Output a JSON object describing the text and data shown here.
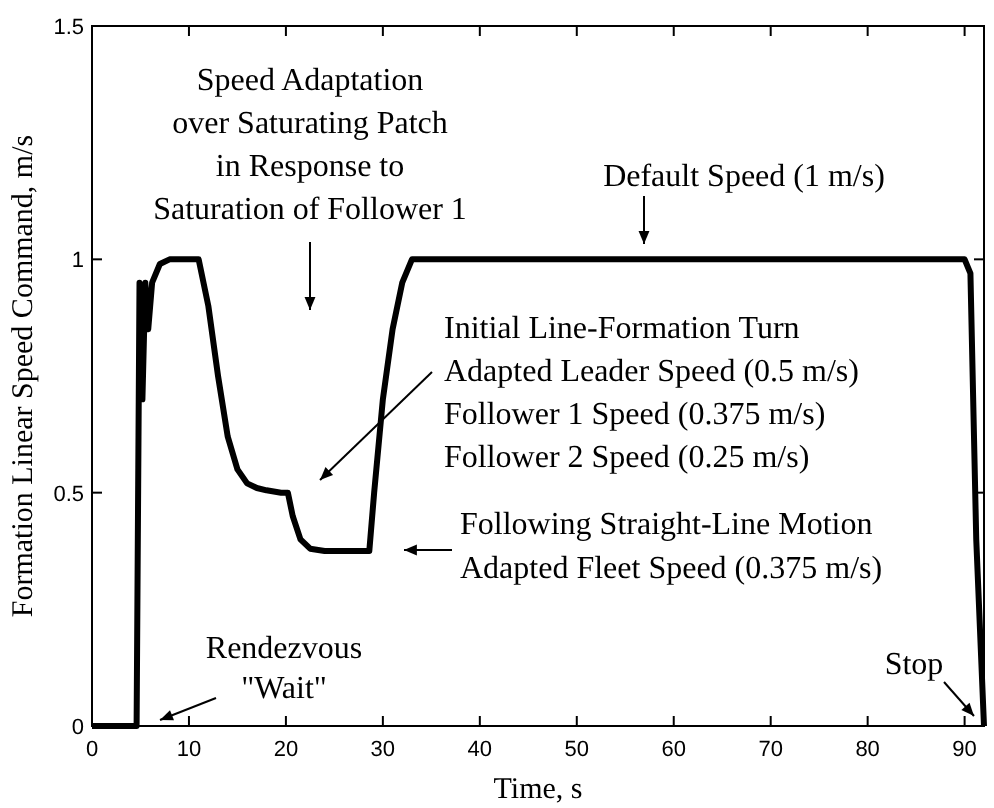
{
  "chart_data": {
    "type": "line",
    "xlabel": "Time, s",
    "ylabel": "Formation Linear Speed Command, m/s",
    "x": [
      0,
      4.6,
      4.9,
      5.2,
      5.5,
      5.8,
      6.2,
      7,
      8,
      10,
      11,
      12,
      13,
      14,
      15,
      16,
      17,
      18,
      19.5,
      20.2,
      20.7,
      21.5,
      22.5,
      24,
      27,
      28.6,
      29.1,
      30,
      31,
      32,
      33,
      40,
      50,
      60,
      70,
      80,
      90,
      90.6,
      91.2,
      92
    ],
    "series": [
      {
        "color": "#000000",
        "values": [
          0,
          0,
          0.95,
          0.7,
          0.95,
          0.85,
          0.95,
          0.99,
          1,
          1,
          1,
          0.9,
          0.75,
          0.62,
          0.55,
          0.52,
          0.51,
          0.505,
          0.5,
          0.5,
          0.45,
          0.4,
          0.38,
          0.375,
          0.375,
          0.375,
          0.5,
          0.7,
          0.85,
          0.95,
          1,
          1,
          1,
          1,
          1,
          1,
          1,
          0.97,
          0.4,
          0
        ]
      }
    ],
    "xlim": [
      0,
      92
    ],
    "ylim": [
      0,
      1.5
    ],
    "xticks": [
      0,
      10,
      20,
      30,
      40,
      50,
      60,
      70,
      80,
      90
    ],
    "yticks": [
      0,
      0.5,
      1,
      1.5
    ],
    "grid": false,
    "marker": "none",
    "line_style": "solid",
    "annotations": [
      "Speed Adaptation\nover Saturating Patch\nin Response to\nSaturation of Follower 1",
      "Default Speed (1 m/s)",
      "Initial Line-Formation Turn\nAdapted Leader Speed (0.5 m/s)\nFollower 1 Speed (0.375 m/s)\nFollower 2 Speed (0.25 m/s)",
      "Following Straight-Line Motion\nAdapted Fleet Speed (0.375 m/s)",
      "Rendezvous\n\"Wait\"",
      "Stop"
    ]
  }
}
